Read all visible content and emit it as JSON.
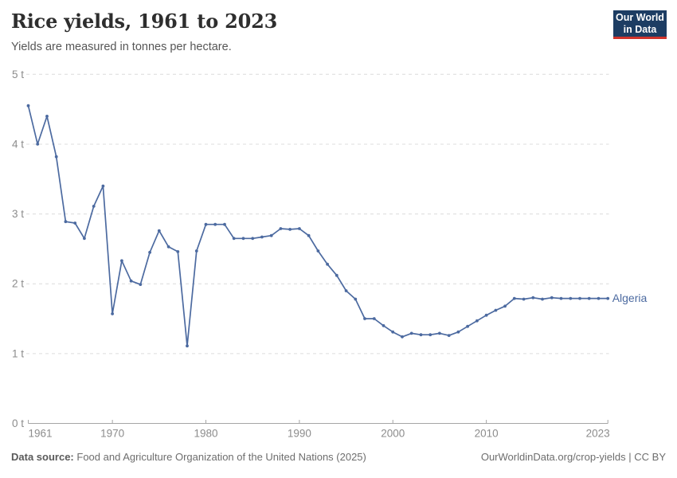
{
  "header": {
    "title": "Rice yields, 1961 to 2023",
    "subtitle": "Yields are measured in tonnes per hectare."
  },
  "logo": {
    "line1": "Our World",
    "line2": "in Data",
    "bg_color": "#1d3d63",
    "accent_color": "#d0342c"
  },
  "chart_data": {
    "type": "line",
    "title": "Rice yields, 1961 to 2023",
    "unit": "tonnes per hectare",
    "xlabel": "",
    "ylabel": "",
    "xlim": [
      1961,
      2023
    ],
    "ylim": [
      0,
      5
    ],
    "x_ticks": [
      1961,
      1970,
      1980,
      1990,
      2000,
      2010,
      2023
    ],
    "y_ticks": [
      0,
      1,
      2,
      3,
      4,
      5
    ],
    "y_tick_suffix": " t",
    "grid": "horizontal-dashed",
    "legend_position": "end-of-line-label",
    "series": [
      {
        "name": "Algeria",
        "color": "#4c6aa0",
        "x": [
          1961,
          1962,
          1963,
          1964,
          1965,
          1966,
          1967,
          1968,
          1969,
          1970,
          1971,
          1972,
          1973,
          1974,
          1975,
          1976,
          1977,
          1978,
          1979,
          1980,
          1981,
          1982,
          1983,
          1984,
          1985,
          1986,
          1987,
          1988,
          1989,
          1990,
          1991,
          1992,
          1993,
          1994,
          1995,
          1996,
          1997,
          1998,
          1999,
          2000,
          2001,
          2002,
          2003,
          2004,
          2005,
          2006,
          2007,
          2008,
          2009,
          2010,
          2011,
          2012,
          2013,
          2014,
          2015,
          2016,
          2017,
          2018,
          2019,
          2020,
          2021,
          2022,
          2023
        ],
        "values": [
          4.55,
          4.0,
          4.4,
          3.82,
          2.89,
          2.87,
          2.65,
          3.11,
          3.4,
          1.57,
          2.33,
          2.04,
          1.99,
          2.45,
          2.76,
          2.53,
          2.46,
          1.11,
          2.47,
          2.85,
          2.85,
          2.85,
          2.65,
          2.65,
          2.65,
          2.67,
          2.69,
          2.79,
          2.78,
          2.79,
          2.69,
          2.47,
          2.28,
          2.12,
          1.9,
          1.78,
          1.5,
          1.5,
          1.4,
          1.31,
          1.24,
          1.29,
          1.27,
          1.27,
          1.29,
          1.26,
          1.31,
          1.39,
          1.47,
          1.55,
          1.62,
          1.68,
          1.79,
          1.78,
          1.8,
          1.78,
          1.8,
          1.79,
          1.79,
          1.79,
          1.79,
          1.79,
          1.79
        ]
      }
    ]
  },
  "footer": {
    "source_label": "Data source:",
    "source_text": "Food and Agriculture Organization of the United Nations (2025)",
    "license_text": "OurWorldinData.org/crop-yields | CC BY"
  },
  "colors": {
    "series_blue": "#4c6aa0",
    "gridline": "#dcdcdc",
    "axis": "#a5a5a5",
    "tick_text": "#8c8c8c"
  }
}
